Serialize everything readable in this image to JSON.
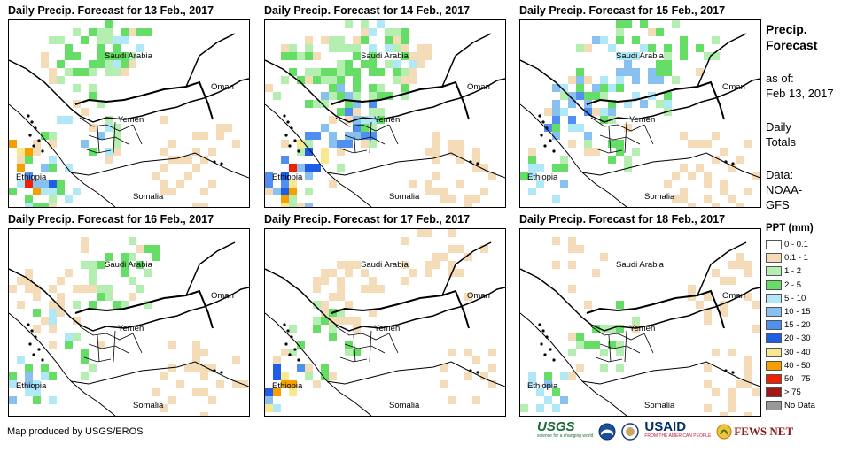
{
  "panels": [
    {
      "title": "Daily Precip. Forecast for 13 Feb., 2017"
    },
    {
      "title": "Daily Precip. Forecast for 14 Feb., 2017"
    },
    {
      "title": "Daily Precip. Forecast for 15 Feb., 2017"
    },
    {
      "title": "Daily Precip. Forecast for 16 Feb., 2017"
    },
    {
      "title": "Daily Precip. Forecast for 17 Feb., 2017"
    },
    {
      "title": "Daily Precip. Forecast for 18 Feb., 2017"
    }
  ],
  "map_labels": {
    "saudi": "Saudi Arabia",
    "oman": "Oman",
    "yemen": "Yemen",
    "ethiopia": "Ethiopia",
    "somalia": "Somalia"
  },
  "sidebar": {
    "title_line1": "Precip.",
    "title_line2": "Forecast",
    "asof_line1": "as of:",
    "asof_line2": "Feb 13, 2017",
    "daily_line1": "Daily",
    "daily_line2": "Totals",
    "data_line1": "Data:",
    "data_line2": "NOAA-",
    "data_line3": "GFS"
  },
  "legend": {
    "title": "PPT (mm)",
    "items": [
      {
        "label": "0 - 0.1",
        "color": "#ffffff"
      },
      {
        "label": "0.1 - 1",
        "color": "#f5dcb8"
      },
      {
        "label": "1 - 2",
        "color": "#b4eeb0"
      },
      {
        "label": "2 - 5",
        "color": "#66dd66"
      },
      {
        "label": "5 - 10",
        "color": "#b0e8f8"
      },
      {
        "label": "10 - 15",
        "color": "#88c0f0"
      },
      {
        "label": "15 - 20",
        "color": "#4f8ff0"
      },
      {
        "label": "20 - 30",
        "color": "#1e5ee6"
      },
      {
        "label": "30 - 40",
        "color": "#f8e890"
      },
      {
        "label": "40 - 50",
        "color": "#f5a000"
      },
      {
        "label": "50 - 75",
        "color": "#ee2200"
      },
      {
        "label": "> 75",
        "color": "#a01818"
      },
      {
        "label": "No Data",
        "color": "#999999"
      }
    ]
  },
  "credit": "Map produced by USGS/EROS",
  "logos": {
    "usgs": "USGS",
    "usgs_tag": "science for a changing world",
    "usaid": "USAID",
    "usaid_tag": "FROM THE AMERICAN PEOPLE",
    "fews": "FEWS NET"
  }
}
